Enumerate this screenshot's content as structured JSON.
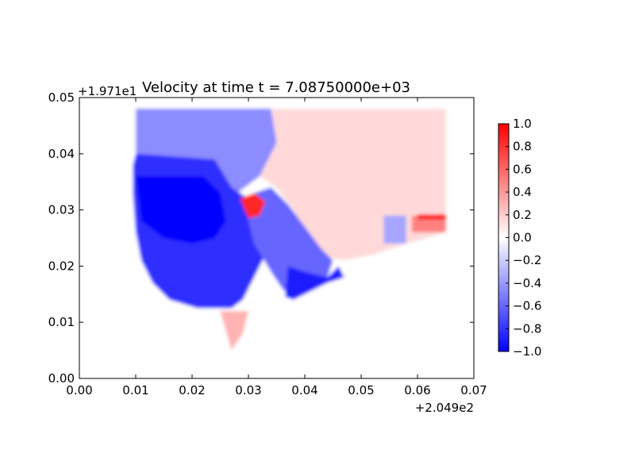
{
  "chart_data": {
    "type": "heatmap",
    "title": "Velocity at time t = 7.08750000e+03",
    "xlabel": "",
    "ylabel": "",
    "x_offset_label": "+2.049e2",
    "y_offset_label": "+1.971e1",
    "xlim": [
      0.0,
      0.07
    ],
    "ylim": [
      0.0,
      0.05
    ],
    "x_ticks": [
      0.0,
      0.01,
      0.02,
      0.03,
      0.04,
      0.05,
      0.06,
      0.07
    ],
    "x_tick_labels": [
      "0.00",
      "0.01",
      "0.02",
      "0.03",
      "0.04",
      "0.05",
      "0.06",
      "0.07"
    ],
    "y_ticks": [
      0.0,
      0.01,
      0.02,
      0.03,
      0.04,
      0.05
    ],
    "y_tick_labels": [
      "0.00",
      "0.01",
      "0.02",
      "0.03",
      "0.04",
      "0.05"
    ],
    "grid": false,
    "colormap": "bwr",
    "colorbar": {
      "min": -1.0,
      "max": 1.0,
      "ticks": [
        1.0,
        0.8,
        0.6,
        0.4,
        0.2,
        0.0,
        -0.2,
        -0.4,
        -0.6,
        -0.8,
        -1.0
      ],
      "tick_labels": [
        "1.0",
        "0.8",
        "0.6",
        "0.4",
        "0.2",
        "0.0",
        "−0.2",
        "−0.4",
        "−0.6",
        "−0.8",
        "−1.0"
      ],
      "low_color": "#0000ff",
      "mid_color": "#ffffff",
      "high_color": "#ff0000"
    },
    "regions": [
      {
        "name": "background",
        "value": 0.0,
        "points": [
          [
            0.005,
            0.005
          ],
          [
            0.065,
            0.005
          ],
          [
            0.065,
            0.048
          ],
          [
            0.005,
            0.048
          ]
        ]
      },
      {
        "name": "upper-right-positive",
        "value": 0.15,
        "points": [
          [
            0.034,
            0.048
          ],
          [
            0.065,
            0.048
          ],
          [
            0.065,
            0.026
          ],
          [
            0.058,
            0.024
          ],
          [
            0.052,
            0.022
          ],
          [
            0.047,
            0.021
          ],
          [
            0.042,
            0.022
          ],
          [
            0.038,
            0.03
          ],
          [
            0.035,
            0.034
          ],
          [
            0.032,
            0.036
          ],
          [
            0.034,
            0.042
          ]
        ]
      },
      {
        "name": "upper-left-negative",
        "value": -0.45,
        "points": [
          [
            0.01,
            0.048
          ],
          [
            0.034,
            0.048
          ],
          [
            0.035,
            0.042
          ],
          [
            0.032,
            0.036
          ],
          [
            0.028,
            0.033
          ],
          [
            0.01,
            0.033
          ]
        ]
      },
      {
        "name": "main-basin",
        "value": -0.82,
        "points": [
          [
            0.01,
            0.04
          ],
          [
            0.024,
            0.039
          ],
          [
            0.027,
            0.034
          ],
          [
            0.03,
            0.032
          ],
          [
            0.031,
            0.026
          ],
          [
            0.033,
            0.022
          ],
          [
            0.031,
            0.018
          ],
          [
            0.029,
            0.014
          ],
          [
            0.027,
            0.0125
          ],
          [
            0.021,
            0.0125
          ],
          [
            0.016,
            0.014
          ],
          [
            0.013,
            0.017
          ],
          [
            0.011,
            0.021
          ],
          [
            0.01,
            0.026
          ],
          [
            0.0095,
            0.033
          ],
          [
            0.0095,
            0.038
          ]
        ]
      },
      {
        "name": "core",
        "value": -1.0,
        "points": [
          [
            0.01,
            0.036
          ],
          [
            0.016,
            0.036
          ],
          [
            0.022,
            0.036
          ],
          [
            0.025,
            0.033
          ],
          [
            0.026,
            0.028
          ],
          [
            0.024,
            0.025
          ],
          [
            0.02,
            0.024
          ],
          [
            0.015,
            0.025
          ],
          [
            0.011,
            0.028
          ]
        ]
      },
      {
        "name": "right-lobe",
        "value": -0.6,
        "points": [
          [
            0.031,
            0.033
          ],
          [
            0.034,
            0.034
          ],
          [
            0.037,
            0.031
          ],
          [
            0.04,
            0.027
          ],
          [
            0.043,
            0.023
          ],
          [
            0.045,
            0.021
          ],
          [
            0.044,
            0.018
          ],
          [
            0.04,
            0.017
          ],
          [
            0.037,
            0.015
          ],
          [
            0.036,
            0.016
          ],
          [
            0.034,
            0.019
          ],
          [
            0.031,
            0.024
          ],
          [
            0.03,
            0.028
          ]
        ]
      },
      {
        "name": "lower-right-lobe",
        "value": -0.9,
        "points": [
          [
            0.037,
            0.02
          ],
          [
            0.04,
            0.019
          ],
          [
            0.044,
            0.018
          ],
          [
            0.046,
            0.02
          ],
          [
            0.047,
            0.018
          ],
          [
            0.044,
            0.017
          ],
          [
            0.04,
            0.015
          ],
          [
            0.038,
            0.014
          ],
          [
            0.0365,
            0.0145
          ]
        ]
      },
      {
        "name": "red-blob",
        "value": 0.85,
        "points": [
          [
            0.0285,
            0.032
          ],
          [
            0.031,
            0.033
          ],
          [
            0.033,
            0.0315
          ],
          [
            0.032,
            0.029
          ],
          [
            0.03,
            0.0285
          ]
        ]
      },
      {
        "name": "right-edge-red-patch",
        "value": 0.5,
        "points": [
          [
            0.059,
            0.029
          ],
          [
            0.065,
            0.029
          ],
          [
            0.065,
            0.026
          ],
          [
            0.059,
            0.026
          ]
        ]
      },
      {
        "name": "right-edge-dark-red",
        "value": 0.95,
        "points": [
          [
            0.06,
            0.0292
          ],
          [
            0.065,
            0.0292
          ],
          [
            0.065,
            0.0283
          ],
          [
            0.06,
            0.0283
          ]
        ]
      },
      {
        "name": "right-stripe-blue",
        "value": -0.35,
        "points": [
          [
            0.054,
            0.029
          ],
          [
            0.058,
            0.029
          ],
          [
            0.058,
            0.024
          ],
          [
            0.054,
            0.024
          ]
        ]
      },
      {
        "name": "bottom-plume",
        "value": 0.3,
        "points": [
          [
            0.025,
            0.012
          ],
          [
            0.03,
            0.012
          ],
          [
            0.029,
            0.008
          ],
          [
            0.027,
            0.005
          ]
        ]
      }
    ]
  }
}
